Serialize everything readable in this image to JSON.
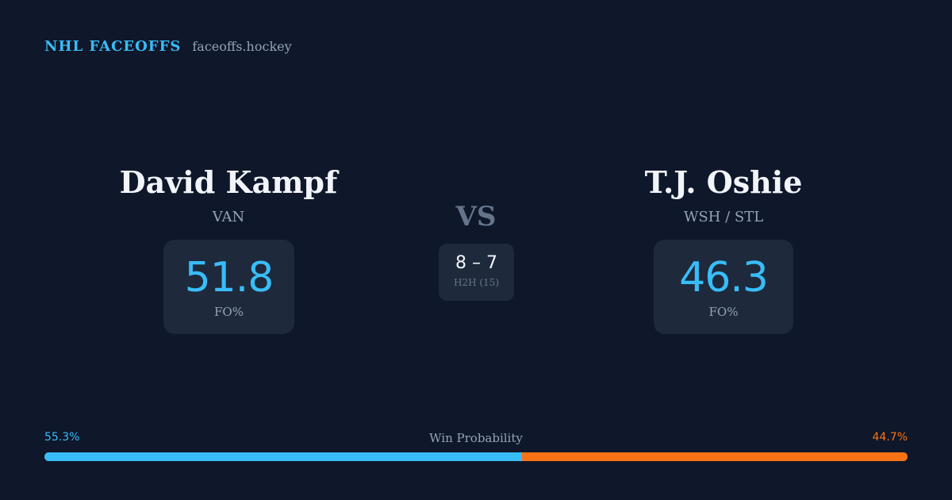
{
  "header": {
    "brand": "NHL FACEOFFS",
    "site": "faceoffs.hockey"
  },
  "left_player": {
    "name": "David Kampf",
    "team": "VAN",
    "fo_pct": "51.8",
    "fo_label": "FO%"
  },
  "right_player": {
    "name": "T.J. Oshie",
    "team": "WSH / STL",
    "fo_pct": "46.3",
    "fo_label": "FO%"
  },
  "vs_label": "VS",
  "h2h": {
    "score": "8 – 7",
    "label": "H2H (15)"
  },
  "win_probability": {
    "title": "Win Probability",
    "left_text": "55.3%",
    "right_text": "44.7%",
    "left_value": 55.3,
    "right_value": 44.7
  },
  "colors": {
    "background": "#0f172a",
    "card": "#1e293b",
    "accent_blue": "#38bdf8",
    "accent_orange": "#f97316",
    "muted": "#94a3b8"
  }
}
